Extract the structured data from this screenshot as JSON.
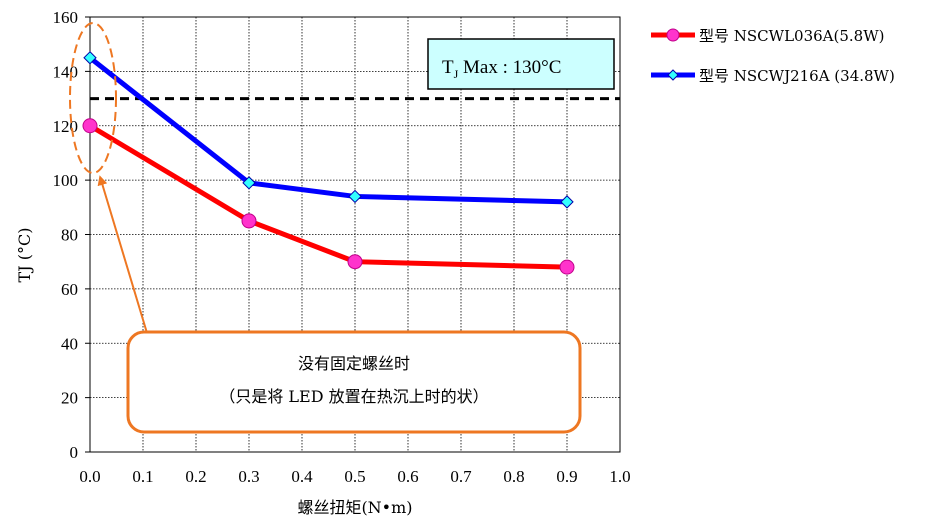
{
  "chart_data": {
    "type": "line",
    "xlabel": "螺丝扭矩(N•m)",
    "ylabel": "TJ (°C)",
    "xlim": [
      0.0,
      1.0
    ],
    "ylim": [
      0,
      160
    ],
    "xticks": [
      "0.0",
      "0.1",
      "0.2",
      "0.3",
      "0.4",
      "0.5",
      "0.6",
      "0.7",
      "0.8",
      "0.9",
      "1.0"
    ],
    "yticks": [
      "0",
      "20",
      "40",
      "60",
      "80",
      "100",
      "120",
      "140",
      "160"
    ],
    "grid": true,
    "legend_position": "right",
    "series": [
      {
        "name": "型号 NSCWL036A(5.8W)",
        "color": "#ff0000",
        "marker": "circle",
        "marker_color": "#ff33cc",
        "x": [
          0.0,
          0.3,
          0.5,
          0.9
        ],
        "y": [
          120,
          85,
          70,
          68
        ]
      },
      {
        "name": "型号 NSCWJ216A (34.8W)",
        "color": "#0000ff",
        "marker": "diamond",
        "marker_color": "#33ffff",
        "x": [
          0.0,
          0.3,
          0.5,
          0.9
        ],
        "y": [
          145,
          99,
          94,
          92
        ]
      }
    ],
    "reference_line": {
      "y": 130,
      "label_main": "T",
      "label_sub": "J",
      "label_rest": " Max : 130°C"
    },
    "annotation": {
      "lines": [
        "没有固定螺丝时",
        "（只是将 LED 放置在热沉上时的状）"
      ],
      "color": "#ee7722"
    }
  }
}
